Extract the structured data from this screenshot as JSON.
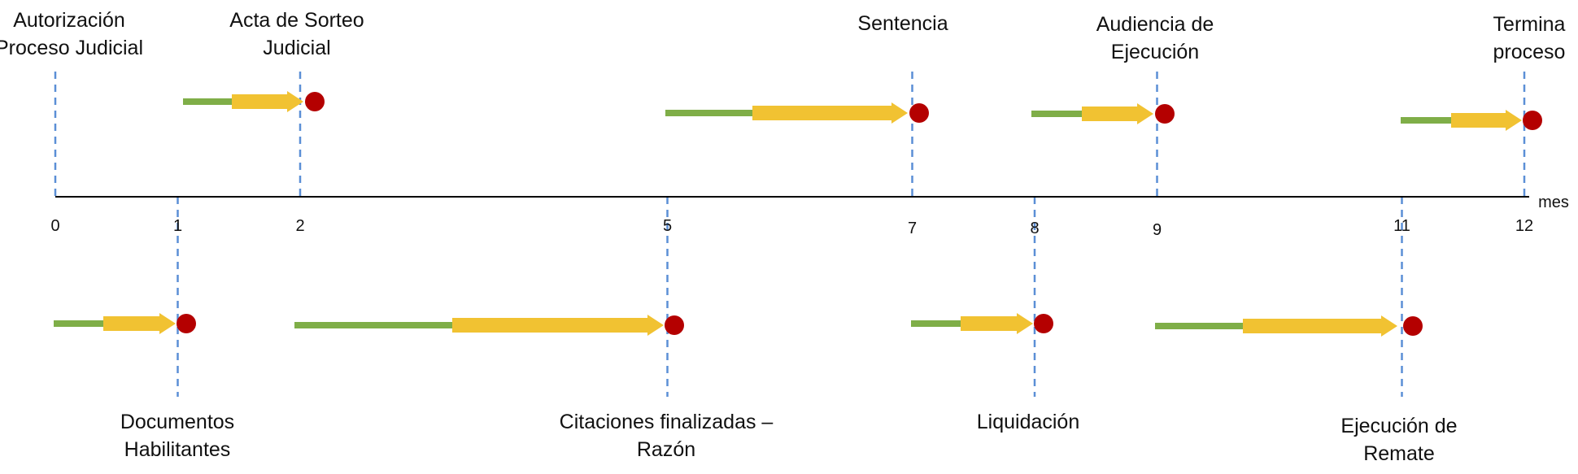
{
  "axis": {
    "unit": "mes",
    "ticks": [
      {
        "label": "0",
        "value": 0
      },
      {
        "label": "1",
        "value": 1
      },
      {
        "label": "2",
        "value": 2
      },
      {
        "label": "5",
        "value": 5
      },
      {
        "label": "7",
        "value": 7
      },
      {
        "label": "8",
        "value": 8
      },
      {
        "label": "9",
        "value": 9
      },
      {
        "label": "11",
        "value": 11
      },
      {
        "label": "12",
        "value": 12
      }
    ]
  },
  "milestones_top": [
    {
      "key": "autorizacion",
      "line1": "Autorización",
      "line2": "Proceso Judicial",
      "month": 0
    },
    {
      "key": "acta",
      "line1": "Acta de Sorteo",
      "line2": "Judicial",
      "month": 2
    },
    {
      "key": "sentencia",
      "line1": "Sentencia",
      "line2": "",
      "month": 7
    },
    {
      "key": "audiencia",
      "line1": "Audiencia de",
      "line2": "Ejecución",
      "month": 9
    },
    {
      "key": "termina",
      "line1": "Termina",
      "line2": "proceso",
      "month": 12
    }
  ],
  "milestones_bottom": [
    {
      "key": "documentos",
      "line1": "Documentos",
      "line2": "Habilitantes",
      "month": 1
    },
    {
      "key": "citaciones",
      "line1": "Citaciones finalizadas –",
      "line2": "Razón",
      "month": 5
    },
    {
      "key": "liquidacion",
      "line1": "Liquidación",
      "line2": "",
      "month": 8
    },
    {
      "key": "ejecucion",
      "line1": "Ejecución de",
      "line2": "Remate",
      "month": 11
    }
  ],
  "colors": {
    "axis": "#000000",
    "dashed": "#5b8fd6",
    "bar": "#7fae48",
    "arrow": "#f1c232",
    "dot": "#b40000"
  }
}
